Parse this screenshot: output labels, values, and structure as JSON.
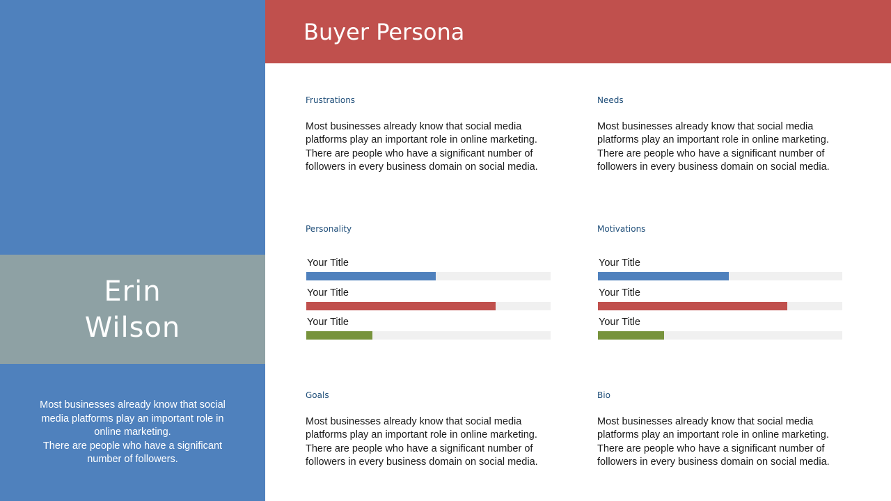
{
  "header": {
    "title": "Buyer Persona"
  },
  "persona": {
    "name_line1": "Erin",
    "name_line2": "Wilson",
    "description": "Most businesses already know that social media platforms play an important role in online marketing.\nThere are people who have a significant number of followers."
  },
  "sections": {
    "frustrations": {
      "label": "Frustrations",
      "body": "Most businesses already know that social media platforms play an important role in online marketing. There are people who have a significant number of followers in every business domain on social media."
    },
    "needs": {
      "label": "Needs",
      "body": "Most businesses already know that social media platforms play an important role in online marketing. There are people who have a significant number of followers in every business domain on social media."
    },
    "personality": {
      "label": "Personality",
      "bars": [
        {
          "title": "Your Title",
          "value": 0.53,
          "color": "#4f81bd"
        },
        {
          "title": "Your Title",
          "value": 0.775,
          "color": "#c0504d"
        },
        {
          "title": "Your Title",
          "value": 0.27,
          "color": "#77933c"
        }
      ]
    },
    "motivations": {
      "label": "Motivations",
      "bars": [
        {
          "title": "Your Title",
          "value": 0.535,
          "color": "#4f81bd"
        },
        {
          "title": "Your Title",
          "value": 0.775,
          "color": "#c0504d"
        },
        {
          "title": "Your Title",
          "value": 0.27,
          "color": "#77933c"
        }
      ]
    },
    "goals": {
      "label": "Goals",
      "body": "Most businesses already know that social media platforms play an important role in online marketing. There are people who have a significant number of followers in every business domain on social media."
    },
    "bio": {
      "label": "Bio",
      "body": "Most businesses already know that social media platforms play an important role in online marketing. There are people who have a significant number of followers in every business domain on social media."
    }
  }
}
